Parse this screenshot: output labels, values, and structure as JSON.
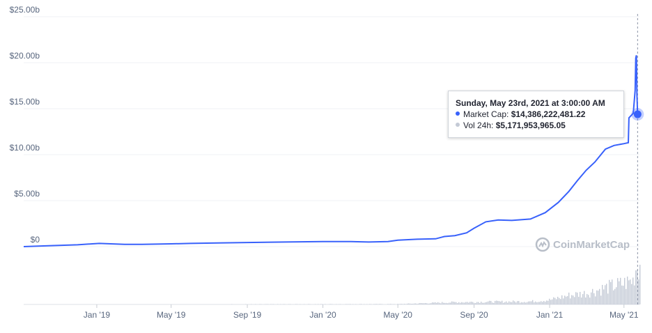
{
  "chart_data": {
    "type": "line",
    "y_axis": {
      "ticks": [
        "$0",
        "$5.00b",
        "$10.00b",
        "$15.00b",
        "$20.00b",
        "$25.00b"
      ],
      "tick_values": [
        0,
        5,
        10,
        15,
        20,
        25
      ],
      "unit": "billion USD",
      "ylim": [
        0,
        25
      ]
    },
    "x_axis": {
      "ticks": [
        "Jan '19",
        "May '19",
        "Sep '19",
        "Jan '20",
        "May '20",
        "Sep '20",
        "Jan '21",
        "May '21"
      ],
      "tick_dates": [
        "2019-01-01",
        "2019-05-01",
        "2019-09-01",
        "2020-01-01",
        "2020-05-01",
        "2020-09-01",
        "2021-01-01",
        "2021-05-01"
      ],
      "xlim": [
        "2018-09-05",
        "2021-05-26"
      ]
    },
    "grid": true,
    "series": [
      {
        "name": "Market Cap",
        "color": "#3861fb",
        "points": [
          [
            "2018-09-05",
            0.0
          ],
          [
            "2018-10-15",
            0.1
          ],
          [
            "2018-12-01",
            0.2
          ],
          [
            "2018-12-25",
            0.3
          ],
          [
            "2019-01-05",
            0.35
          ],
          [
            "2019-02-15",
            0.25
          ],
          [
            "2019-03-15",
            0.25
          ],
          [
            "2019-05-01",
            0.3
          ],
          [
            "2019-06-01",
            0.35
          ],
          [
            "2019-07-15",
            0.4
          ],
          [
            "2019-09-01",
            0.45
          ],
          [
            "2019-11-01",
            0.5
          ],
          [
            "2020-01-01",
            0.55
          ],
          [
            "2020-02-15",
            0.55
          ],
          [
            "2020-03-15",
            0.5
          ],
          [
            "2020-04-15",
            0.55
          ],
          [
            "2020-05-01",
            0.7
          ],
          [
            "2020-06-01",
            0.8
          ],
          [
            "2020-07-01",
            0.85
          ],
          [
            "2020-07-15",
            1.1
          ],
          [
            "2020-08-01",
            1.2
          ],
          [
            "2020-08-20",
            1.5
          ],
          [
            "2020-09-01",
            2.0
          ],
          [
            "2020-09-20",
            2.7
          ],
          [
            "2020-10-10",
            2.9
          ],
          [
            "2020-11-01",
            2.85
          ],
          [
            "2020-12-01",
            3.0
          ],
          [
            "2020-12-25",
            3.7
          ],
          [
            "2021-01-15",
            4.8
          ],
          [
            "2021-02-01",
            6.0
          ],
          [
            "2021-02-15",
            7.2
          ],
          [
            "2021-03-01",
            8.3
          ],
          [
            "2021-03-15",
            9.2
          ],
          [
            "2021-04-01",
            10.6
          ],
          [
            "2021-04-15",
            11.0
          ],
          [
            "2021-05-01",
            11.2
          ],
          [
            "2021-05-08",
            11.3
          ],
          [
            "2021-05-09",
            14.0
          ],
          [
            "2021-05-16",
            14.5
          ],
          [
            "2021-05-19",
            17.0
          ],
          [
            "2021-05-20",
            20.5
          ],
          [
            "2021-05-21",
            20.8
          ],
          [
            "2021-05-22",
            16.5
          ],
          [
            "2021-05-23",
            14.39
          ]
        ]
      },
      {
        "name": "Vol 24h",
        "color": "#c4cad6",
        "points": [
          [
            "2018-09-05",
            0.0
          ],
          [
            "2020-05-01",
            0.05
          ],
          [
            "2020-08-01",
            0.3
          ],
          [
            "2020-12-01",
            0.4
          ],
          [
            "2021-01-01",
            0.6
          ],
          [
            "2021-02-01",
            1.2
          ],
          [
            "2021-03-01",
            1.5
          ],
          [
            "2021-04-01",
            2.2
          ],
          [
            "2021-05-01",
            2.8
          ],
          [
            "2021-05-15",
            3.2
          ],
          [
            "2021-05-20",
            5.0
          ],
          [
            "2021-05-23",
            5.17
          ]
        ]
      }
    ],
    "tooltip": {
      "date": "Sunday, May 23rd, 2021 at 3:00:00 AM",
      "market_cap_label": "Market Cap:",
      "market_cap_value": "$14,386,222,481.22",
      "vol_label": "Vol 24h:",
      "vol_value": "$5,171,953,965.05",
      "market_cap_color": "#3861fb",
      "vol_color": "#c4cad6",
      "hover_date": "2021-05-23",
      "hover_value": 14.39
    },
    "watermark": "CoinMarketCap"
  }
}
